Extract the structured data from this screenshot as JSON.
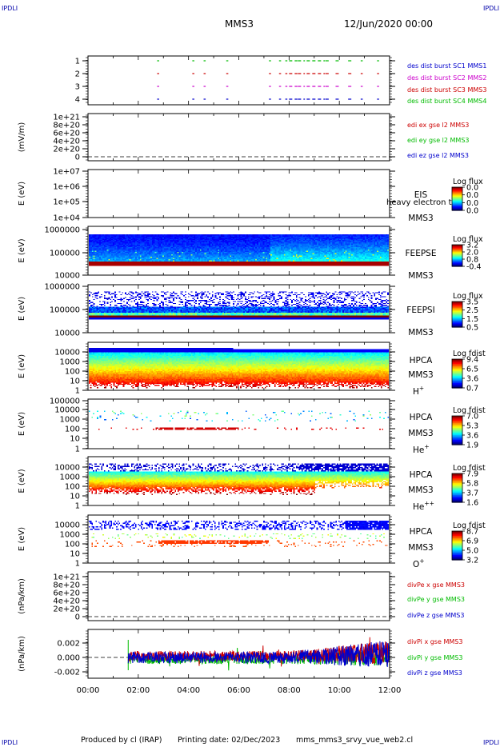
{
  "header": {
    "title": "MMS3",
    "date": "12/Jun/2020 00:00"
  },
  "corner_labels": {
    "top_left": "IPDLI",
    "top_right": "IPDLI",
    "bottom_left": "IPDLI",
    "bottom_right": "IPDLI"
  },
  "footer": {
    "produced_by": "Produced by cl (IRAP)",
    "printing_date": "Printing date: 02/Dec/2023",
    "filename": "mms_mms3_srvy_vue_web2.cl"
  },
  "chart_data": [
    {
      "type": "line",
      "name": "availability",
      "ylabel": "",
      "yticks": [
        "1",
        "2",
        "3",
        "4"
      ],
      "legend": [
        {
          "text": "des dist burst SC1 MMS1",
          "color": "#0000cc"
        },
        {
          "text": "des dist burst SC2 MMS2",
          "color": "#cc00cc"
        },
        {
          "text": "des dist burst SC3 MMS3",
          "color": "#cc0000"
        },
        {
          "text": "des dist burst SC4 MMS4",
          "color": "#00bb00"
        }
      ],
      "colors": {
        "1": "#0000cc",
        "2": "#cc00cc",
        "3": "#cc0000",
        "4": "#00bb00"
      },
      "bursts": [
        [
          2.75,
          2.8
        ],
        [
          4.15,
          4.2
        ],
        [
          4.6,
          4.65
        ],
        [
          5.5,
          5.55
        ],
        [
          7.2,
          7.25
        ],
        [
          7.6,
          7.65
        ],
        [
          7.85,
          7.9
        ],
        [
          8.0,
          8.3
        ],
        [
          8.35,
          8.6
        ],
        [
          8.7,
          9.4
        ],
        [
          9.45,
          9.6
        ],
        [
          9.85,
          9.95
        ],
        [
          10.35,
          10.45
        ],
        [
          10.85,
          10.9
        ],
        [
          11.5,
          11.55
        ]
      ]
    },
    {
      "type": "line",
      "name": "edi-e",
      "ylabel": "(mV/m)",
      "yticks": [
        "0",
        "2e+20",
        "4e+20",
        "6e+20",
        "8e+20",
        "1e+21"
      ],
      "legend": [
        {
          "text": "edi ex gse l2 MMS3",
          "color": "#cc0000"
        },
        {
          "text": "edi ey gse l2 MMS3",
          "color": "#00bb00"
        },
        {
          "text": "edi ez gse l2 MMS3",
          "color": "#0000cc"
        }
      ]
    },
    {
      "type": "heatmap",
      "name": "eis",
      "ylabel": "E (eV)",
      "yticks": [
        "1e+04",
        "1e+05",
        "1e+06",
        "1e+07"
      ],
      "labels": [
        "EIS",
        "MMS3"
      ],
      "overlay_text": "heavy electron to",
      "colorbar": {
        "title": "Log flux",
        "ticks": [
          "0.0",
          "0.0",
          "0.0",
          "0.0"
        ]
      }
    },
    {
      "type": "heatmap",
      "name": "feeps-e",
      "ylabel": "E (eV)",
      "yticks": [
        "10000",
        "100000",
        "1000000"
      ],
      "labels": [
        "FEEPSE",
        "MMS3"
      ],
      "colorbar": {
        "title": "Log flux",
        "ticks": [
          "3.2",
          "2.0",
          "0.8",
          "-0.4"
        ]
      }
    },
    {
      "type": "heatmap",
      "name": "feeps-i",
      "ylabel": "E (eV)",
      "yticks": [
        "10000",
        "100000",
        "1000000"
      ],
      "labels": [
        "FEEPSI",
        "MMS3"
      ],
      "colorbar": {
        "title": "Log flux",
        "ticks": [
          "3.5",
          "2.5",
          "1.5",
          "0.5"
        ]
      }
    },
    {
      "type": "heatmap",
      "name": "hpca-h",
      "ylabel": "E (eV)",
      "yticks": [
        "1",
        "10",
        "100",
        "1000",
        "10000"
      ],
      "labels": [
        "HPCA",
        "MMS3"
      ],
      "species": "H",
      "charge": "+",
      "colorbar": {
        "title": "Log fdist",
        "ticks": [
          "9.4",
          "6.5",
          "3.6",
          "0.7"
        ]
      }
    },
    {
      "type": "heatmap",
      "name": "hpca-he",
      "ylabel": "E (eV)",
      "yticks": [
        "1",
        "10",
        "100",
        "1000",
        "10000",
        "100000"
      ],
      "labels": [
        "HPCA",
        "MMS3"
      ],
      "species": "He",
      "charge": "+",
      "colorbar": {
        "title": "Log fdist",
        "ticks": [
          "7.0",
          "5.3",
          "3.6",
          "1.9"
        ]
      }
    },
    {
      "type": "heatmap",
      "name": "hpca-he2",
      "ylabel": "E (eV)",
      "yticks": [
        "1",
        "10",
        "100",
        "1000",
        "10000"
      ],
      "labels": [
        "HPCA",
        "MMS3"
      ],
      "species": "He",
      "charge": "++",
      "colorbar": {
        "title": "Log fdist",
        "ticks": [
          "7.9",
          "5.8",
          "3.7",
          "1.6"
        ]
      }
    },
    {
      "type": "heatmap",
      "name": "hpca-o",
      "ylabel": "E (eV)",
      "yticks": [
        "1",
        "10",
        "100",
        "1000",
        "10000"
      ],
      "labels": [
        "HPCA",
        "MMS3"
      ],
      "species": "O",
      "charge": "+",
      "colorbar": {
        "title": "Log fdist",
        "ticks": [
          "8.7",
          "6.9",
          "5.0",
          "3.2"
        ]
      }
    },
    {
      "type": "line",
      "name": "dive",
      "ylabel": "(nPa/km)",
      "yticks": [
        "0",
        "2e+20",
        "4e+20",
        "6e+20",
        "8e+20",
        "1e+21"
      ],
      "legend": [
        {
          "text": "divPe x gse MMS3",
          "color": "#cc0000"
        },
        {
          "text": "divPe y gse MMS3",
          "color": "#00bb00"
        },
        {
          "text": "divPe z gse MMS3",
          "color": "#0000cc"
        }
      ]
    },
    {
      "type": "line",
      "name": "divi",
      "ylabel": "(nPa/km)",
      "yticks": [
        "-0.002",
        "0.000",
        "0.002"
      ],
      "ylim": [
        -0.003,
        0.003
      ],
      "legend": [
        {
          "text": "divPi x gse MMS3",
          "color": "#cc0000"
        },
        {
          "text": "divPi y gse MMS3",
          "color": "#00bb00"
        },
        {
          "text": "divPi z gse MMS3",
          "color": "#0000cc"
        }
      ],
      "data_start_hour": 1.6
    }
  ],
  "x_axis": {
    "ticks": [
      "00:00",
      "02:00",
      "04:00",
      "06:00",
      "08:00",
      "10:00",
      "12:00"
    ],
    "xlim": [
      0,
      12
    ]
  }
}
